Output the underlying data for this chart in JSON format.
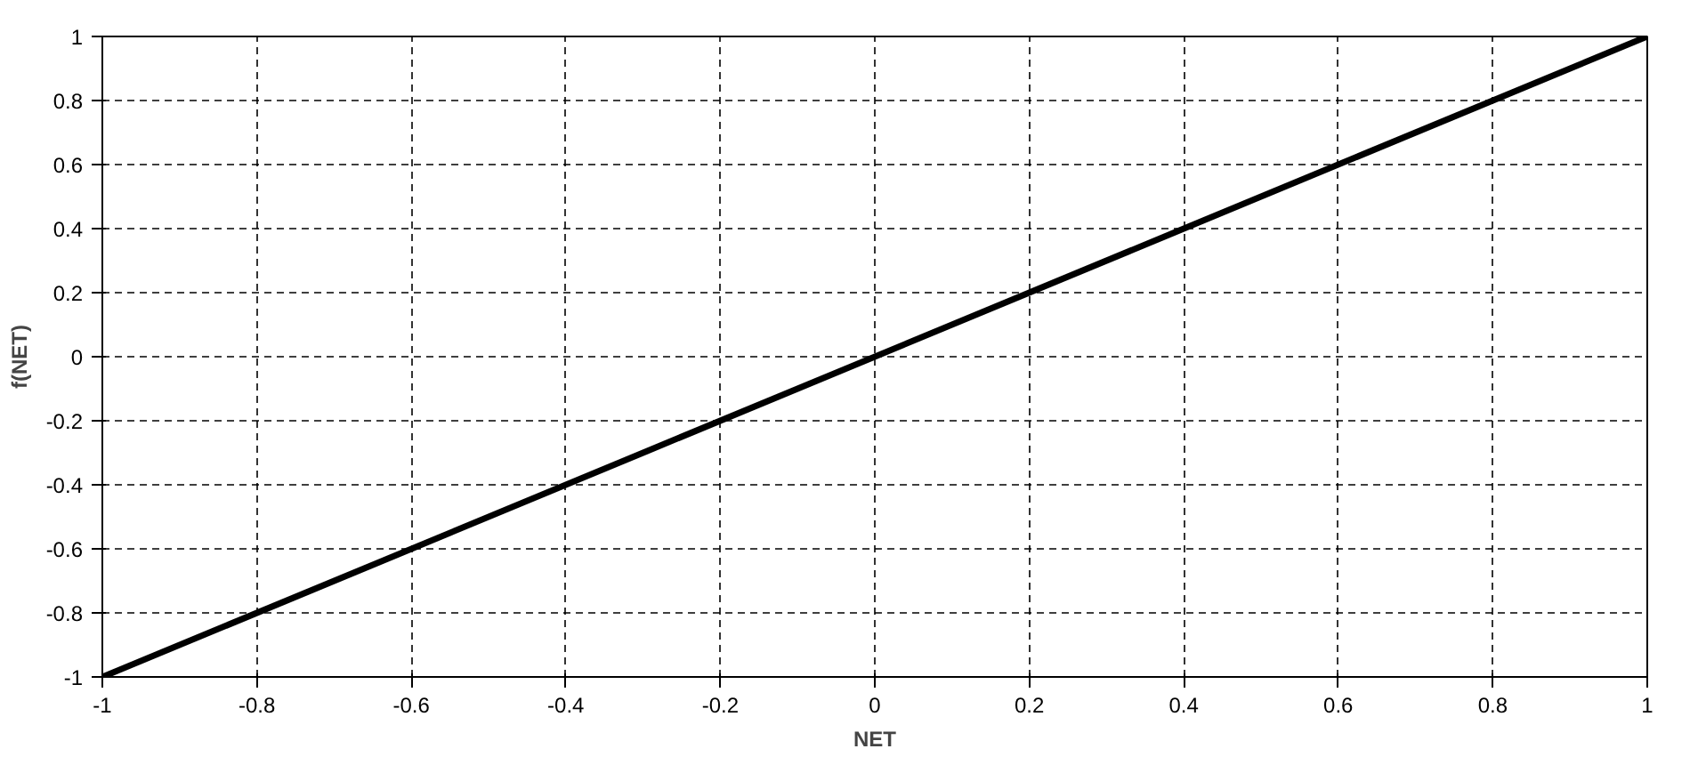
{
  "chart_data": {
    "type": "line",
    "xlabel": "NET",
    "ylabel": "f(NET)",
    "x": [
      -1,
      1
    ],
    "series": [
      {
        "color": "#000000",
        "values": [
          -1,
          1
        ]
      }
    ],
    "xlim": [
      -1,
      1
    ],
    "ylim": [
      -1,
      1
    ],
    "xticks": [
      -1,
      -0.8,
      -0.6,
      -0.4,
      -0.2,
      0,
      0.2,
      0.4,
      0.6,
      0.8,
      1
    ],
    "yticks": [
      -1,
      -0.8,
      -0.6,
      -0.4,
      -0.2,
      0,
      0.2,
      0.4,
      0.6,
      0.8,
      1
    ],
    "grid": true,
    "marker": "none",
    "line_style": "solid"
  }
}
